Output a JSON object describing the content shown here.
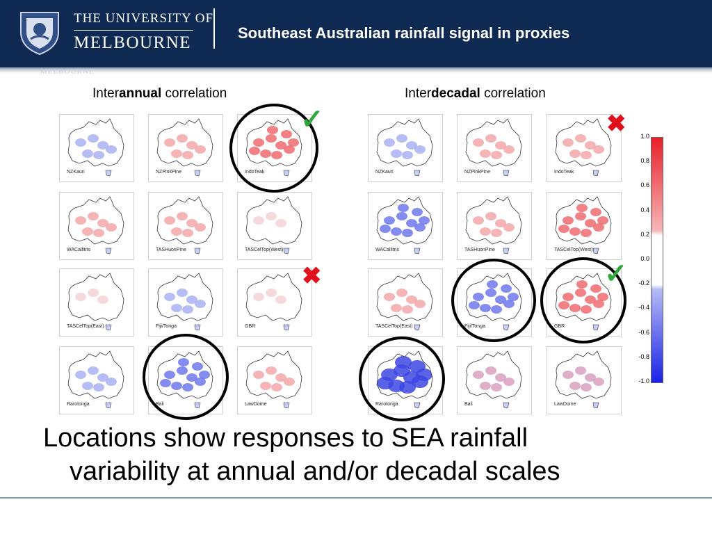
{
  "header": {
    "university_top": "THE UNIVERSITY OF",
    "university_main": "MELBOURNE",
    "crest_icon": "university-crest-icon",
    "title": "Southeast Australian rainfall signal in proxies",
    "ghost_text": "MELBOURNE"
  },
  "panels": {
    "annual": {
      "prefix": "Inter",
      "bold": "annual",
      "suffix": " correlation"
    },
    "decadal": {
      "prefix": "Inter",
      "bold": "decadal",
      "suffix": " correlation"
    }
  },
  "maps": {
    "annual": [
      "NZKauri",
      "NZPinkPine",
      "IndoTeak",
      "WACallitris",
      "TASHuonPine",
      "TASCelTop(West)",
      "TASCelTop(East)",
      "Fiji/Tonga",
      "GBR",
      "Rarotonga",
      "Bali",
      "LawDome"
    ],
    "decadal": [
      "NZKauri",
      "NZPinkPine",
      "IndoTeak",
      "WACallitris",
      "TASHuonPine",
      "TASCelTop(West)",
      "TASCelTop(East)",
      "Fiji/Tonga",
      "GBR",
      "Rarotonga",
      "Bali",
      "LawDome"
    ]
  },
  "marks": {
    "check_icon": "check-icon",
    "cross_icon": "cross-icon",
    "check_glyph": "✓",
    "cross_glyph": "✖"
  },
  "colorbar": {
    "ticks": [
      "1.0",
      "0.8",
      "0.6",
      "0.4",
      "0.2",
      "0.0",
      "-0.2",
      "-0.4",
      "-0.6",
      "-0.8",
      "-1.0"
    ],
    "colors": {
      "positive": "#e8202a",
      "neutral": "#ffffff",
      "negative": "#1a22e6"
    }
  },
  "summary": {
    "line1": "Locations show responses to SEA rainfall",
    "line2": "variability at annual and/or decadal scales"
  }
}
